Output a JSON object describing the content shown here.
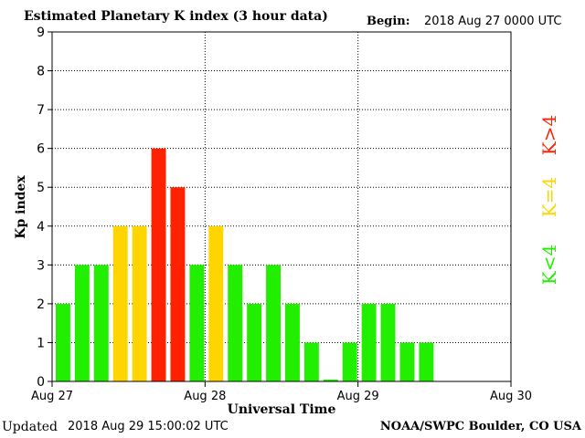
{
  "header": {
    "title": "Estimated Planetary K index (3 hour data)",
    "begin_label": "Begin:",
    "begin_value": "2018 Aug 27 0000 UTC"
  },
  "footer": {
    "updated_label": "Updated",
    "updated_value": "2018 Aug 29 15:00:02 UTC",
    "credit": "NOAA/SWPC Boulder, CO USA"
  },
  "legend": {
    "low": "K<4",
    "equal": "K=4",
    "high": "K>4"
  },
  "colors": {
    "low": "#22ee00",
    "equal": "#ffd500",
    "high": "#ff2200",
    "grid": "#000000"
  },
  "chart_data": {
    "type": "bar",
    "title": "Estimated Planetary K index (3 hour data)",
    "xlabel": "Universal Time",
    "ylabel": "Kp index",
    "ylim": [
      0,
      9
    ],
    "yticks": [
      "0",
      "1",
      "2",
      "3",
      "4",
      "5",
      "6",
      "7",
      "8",
      "9"
    ],
    "xticks": [
      "Aug 27",
      "Aug 28",
      "Aug 29",
      "Aug 30"
    ],
    "bins_per_day": 8,
    "total_bins": 24,
    "grid": true,
    "values": [
      2,
      3,
      3,
      4,
      4,
      6,
      5,
      3,
      4,
      3,
      2,
      3,
      2,
      1,
      0.05,
      1,
      2,
      2,
      1,
      1
    ]
  }
}
